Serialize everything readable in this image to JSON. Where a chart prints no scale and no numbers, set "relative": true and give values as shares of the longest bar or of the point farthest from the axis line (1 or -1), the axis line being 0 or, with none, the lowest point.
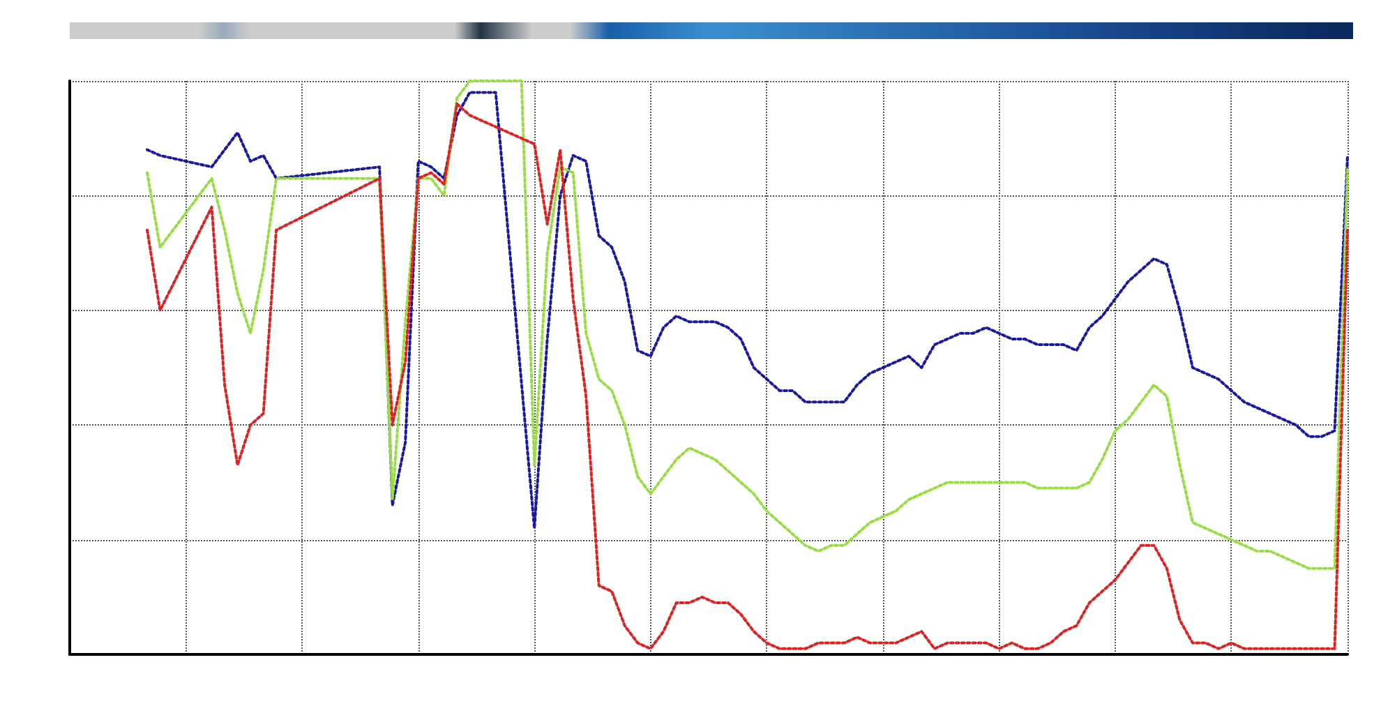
{
  "chart_data": {
    "type": "line",
    "relative": true,
    "grid": true,
    "marker": "none",
    "line_style": "dotted",
    "categories": [
      null,
      null,
      null,
      null,
      null,
      null,
      null,
      null,
      null,
      null,
      null,
      null,
      null,
      null,
      null,
      null,
      null,
      null,
      null,
      null,
      null,
      null,
      null,
      null,
      null,
      null,
      null,
      null,
      null,
      null,
      null,
      null,
      null,
      null,
      null,
      null,
      null,
      null,
      null,
      null,
      null,
      null,
      null,
      null,
      null,
      null,
      null,
      null,
      null,
      null,
      null,
      null,
      null,
      null,
      null,
      null,
      null,
      null,
      null,
      null,
      null,
      null,
      null,
      null,
      null,
      null,
      null,
      null,
      null,
      null,
      null,
      null,
      null,
      null,
      null,
      null,
      null,
      null,
      null,
      null,
      null,
      null,
      null,
      null,
      null,
      null,
      null,
      null,
      null,
      null,
      null,
      null,
      null,
      null,
      null,
      null,
      null,
      null,
      null,
      null
    ],
    "series": [
      {
        "color": "#1a1aa0",
        "values": [
          null,
          null,
          null,
          null,
          null,
          null,
          0.88,
          0.87,
          null,
          null,
          null,
          0.85,
          0.88,
          0.91,
          0.86,
          0.87,
          0.83,
          null,
          null,
          null,
          null,
          null,
          null,
          null,
          0.85,
          0.26,
          0.37,
          0.86,
          0.85,
          0.83,
          0.94,
          0.98,
          0.98,
          0.98,
          null,
          null,
          0.22,
          0.55,
          0.8,
          0.87,
          0.86,
          0.73,
          0.71,
          0.65,
          0.53,
          0.52,
          0.57,
          0.59,
          0.58,
          0.58,
          0.58,
          0.57,
          0.55,
          0.5,
          0.48,
          0.46,
          0.46,
          0.44,
          0.44,
          0.44,
          0.44,
          0.47,
          0.49,
          0.5,
          0.51,
          0.52,
          0.5,
          0.54,
          0.55,
          0.56,
          0.56,
          0.57,
          0.56,
          0.55,
          0.55,
          0.54,
          0.54,
          0.54,
          0.53,
          0.57,
          0.59,
          0.62,
          0.65,
          0.67,
          0.69,
          0.68,
          0.6,
          0.5,
          0.49,
          0.48,
          0.46,
          0.44,
          0.43,
          0.42,
          0.41,
          0.4,
          0.38,
          0.38,
          0.39,
          0.87
        ]
      },
      {
        "color": "#99dd44",
        "values": [
          null,
          null,
          null,
          null,
          null,
          null,
          0.84,
          0.71,
          null,
          null,
          null,
          0.83,
          0.74,
          0.63,
          0.56,
          0.67,
          0.83,
          null,
          null,
          null,
          null,
          null,
          null,
          null,
          0.83,
          0.27,
          0.58,
          0.83,
          0.83,
          0.8,
          0.97,
          1,
          1,
          1,
          1,
          1,
          0.33,
          0.7,
          0.85,
          0.84,
          0.56,
          0.48,
          0.46,
          0.4,
          0.31,
          0.28,
          0.31,
          0.34,
          0.36,
          0.35,
          0.34,
          0.32,
          0.3,
          0.28,
          0.25,
          0.23,
          0.21,
          0.19,
          0.18,
          0.19,
          0.19,
          0.21,
          0.23,
          0.24,
          0.25,
          0.27,
          0.28,
          0.29,
          0.3,
          0.3,
          0.3,
          0.3,
          0.3,
          0.3,
          0.3,
          0.29,
          0.29,
          0.29,
          0.29,
          0.3,
          0.34,
          0.39,
          0.41,
          0.44,
          0.47,
          0.45,
          0.33,
          0.23,
          0.22,
          0.21,
          0.2,
          0.19,
          0.18,
          0.18,
          0.17,
          0.16,
          0.15,
          0.15,
          0.15,
          0.85
        ]
      },
      {
        "color": "#dd2222",
        "values": [
          null,
          null,
          null,
          null,
          null,
          null,
          0.74,
          0.6,
          null,
          null,
          null,
          0.78,
          0.47,
          0.33,
          0.4,
          0.42,
          0.74,
          null,
          null,
          null,
          null,
          null,
          null,
          null,
          0.83,
          0.4,
          0.51,
          0.83,
          0.84,
          0.82,
          0.96,
          0.94,
          null,
          null,
          null,
          null,
          0.89,
          0.75,
          0.88,
          0.62,
          0.45,
          0.12,
          0.11,
          0.05,
          0.02,
          0.01,
          0.04,
          0.09,
          0.09,
          0.1,
          0.09,
          0.09,
          0.07,
          0.04,
          0.02,
          0.01,
          0.01,
          0.01,
          0.02,
          0.02,
          0.02,
          0.03,
          0.02,
          0.02,
          0.02,
          0.03,
          0.04,
          0.01,
          0.02,
          0.02,
          0.02,
          0.02,
          0.01,
          0.02,
          0.01,
          0.01,
          0.02,
          0.04,
          0.05,
          0.09,
          0.11,
          0.13,
          0.16,
          0.19,
          0.19,
          0.15,
          0.06,
          0.02,
          0.02,
          0.01,
          0.02,
          0.01,
          0.01,
          0.01,
          0.01,
          0.01,
          0.01,
          0.01,
          0.01,
          0.74
        ]
      }
    ]
  }
}
